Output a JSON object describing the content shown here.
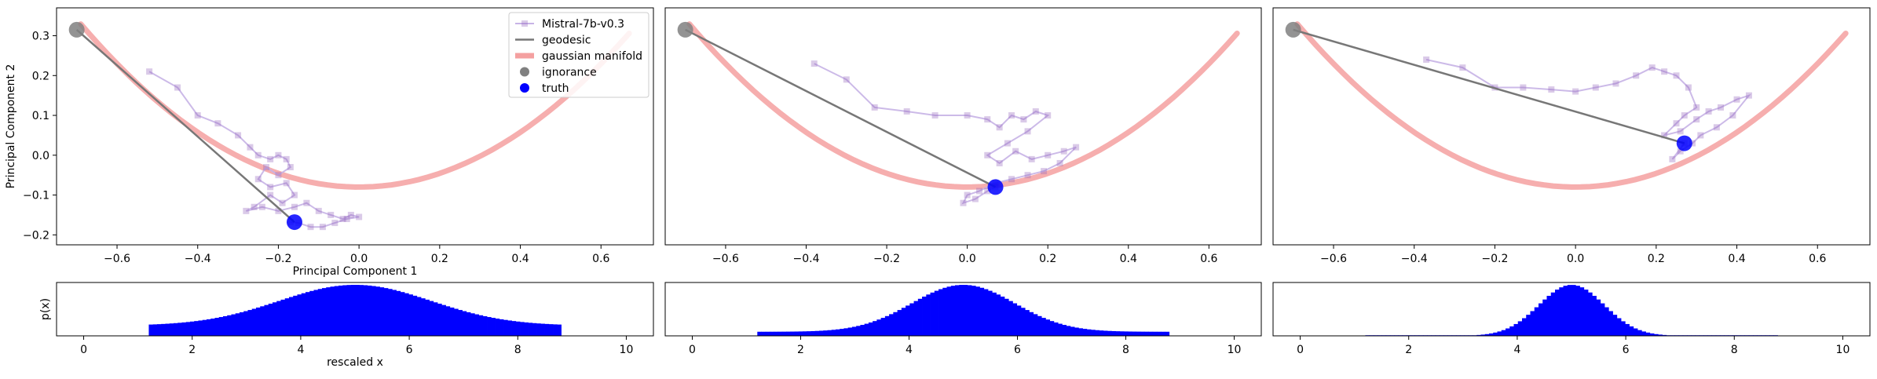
{
  "legend": {
    "series": "Mistral-7b-v0.3",
    "geodesic": "geodesic",
    "manifold": "gaussian manifold",
    "ignorance": "ignorance",
    "truth": "truth"
  },
  "colors": {
    "trajectory": "#9467bd",
    "trajectory_line": "#c7b3e6",
    "geodesic": "#777777",
    "manifold": "#f4a0a0",
    "ignorance": "#808080",
    "truth": "#0000ff",
    "histogram": "#0000ff"
  },
  "chart_data": [
    {
      "type": "line",
      "panel": 1,
      "xlabel": "Principal Component 1",
      "ylabel": "Principal Component 2",
      "xlim": [
        -0.75,
        0.73
      ],
      "ylim": [
        -0.225,
        0.37
      ],
      "xticks": [
        "-0.6",
        "-0.4",
        "-0.2",
        "0.0",
        "0.2",
        "0.4",
        "0.6"
      ],
      "yticks": [
        "-0.2",
        "-0.1",
        "0.0",
        "0.1",
        "0.2",
        "0.3"
      ],
      "legend_position": "top-right",
      "ignorance": [
        -0.7,
        0.315
      ],
      "truth": [
        -0.16,
        -0.168
      ],
      "trajectory": {
        "x": [
          -0.52,
          -0.45,
          -0.4,
          -0.35,
          -0.3,
          -0.27,
          -0.25,
          -0.22,
          -0.2,
          -0.18,
          -0.17,
          -0.2,
          -0.23,
          -0.25,
          -0.22,
          -0.18,
          -0.16,
          -0.19,
          -0.22,
          -0.26,
          -0.28,
          -0.24,
          -0.2,
          -0.16,
          -0.13,
          -0.1,
          -0.07,
          -0.04,
          -0.02,
          0.0,
          -0.03,
          -0.06,
          -0.09,
          -0.12,
          -0.15,
          -0.17
        ],
        "y": [
          0.21,
          0.17,
          0.1,
          0.08,
          0.05,
          0.02,
          0.0,
          -0.01,
          0.0,
          -0.01,
          -0.03,
          -0.05,
          -0.03,
          -0.06,
          -0.08,
          -0.07,
          -0.1,
          -0.12,
          -0.1,
          -0.13,
          -0.14,
          -0.13,
          -0.14,
          -0.13,
          -0.12,
          -0.14,
          -0.15,
          -0.16,
          -0.15,
          -0.155,
          -0.16,
          -0.17,
          -0.18,
          -0.18,
          -0.17,
          -0.168
        ]
      }
    },
    {
      "type": "line",
      "panel": 2,
      "xlim": [
        -0.75,
        0.73
      ],
      "ylim": [
        -0.225,
        0.37
      ],
      "xticks": [
        "-0.6",
        "-0.4",
        "-0.2",
        "0.0",
        "0.2",
        "0.4",
        "0.6"
      ],
      "ignorance": [
        -0.7,
        0.315
      ],
      "truth": [
        0.07,
        -0.08
      ],
      "trajectory": {
        "x": [
          -0.38,
          -0.3,
          -0.23,
          -0.15,
          -0.08,
          0.0,
          0.05,
          0.08,
          0.11,
          0.14,
          0.17,
          0.2,
          0.15,
          0.1,
          0.05,
          0.08,
          0.12,
          0.16,
          0.2,
          0.24,
          0.27,
          0.23,
          0.19,
          0.15,
          0.11,
          0.07,
          0.03,
          0.0,
          -0.01,
          0.02,
          0.05,
          0.07
        ],
        "y": [
          0.23,
          0.19,
          0.12,
          0.11,
          0.1,
          0.1,
          0.09,
          0.07,
          0.1,
          0.09,
          0.11,
          0.1,
          0.06,
          0.03,
          0.0,
          -0.02,
          0.01,
          -0.01,
          0.0,
          0.01,
          0.02,
          -0.02,
          -0.04,
          -0.05,
          -0.06,
          -0.07,
          -0.09,
          -0.1,
          -0.12,
          -0.11,
          -0.09,
          -0.08
        ]
      }
    },
    {
      "type": "line",
      "panel": 3,
      "xlim": [
        -0.75,
        0.73
      ],
      "ylim": [
        -0.225,
        0.37
      ],
      "xticks": [
        "-0.6",
        "-0.4",
        "-0.2",
        "0.0",
        "0.2",
        "0.4",
        "0.6"
      ],
      "ignorance": [
        -0.7,
        0.315
      ],
      "truth": [
        0.27,
        0.03
      ],
      "trajectory": {
        "x": [
          -0.37,
          -0.28,
          -0.2,
          -0.13,
          -0.06,
          0.0,
          0.05,
          0.1,
          0.15,
          0.19,
          0.22,
          0.25,
          0.28,
          0.3,
          0.27,
          0.25,
          0.22,
          0.26,
          0.3,
          0.33,
          0.36,
          0.4,
          0.43,
          0.39,
          0.35,
          0.31,
          0.29,
          0.26,
          0.24,
          0.27
        ],
        "y": [
          0.24,
          0.22,
          0.17,
          0.17,
          0.165,
          0.16,
          0.17,
          0.18,
          0.2,
          0.22,
          0.21,
          0.2,
          0.17,
          0.12,
          0.1,
          0.08,
          0.05,
          0.06,
          0.09,
          0.11,
          0.12,
          0.14,
          0.15,
          0.1,
          0.07,
          0.05,
          0.03,
          0.01,
          -0.01,
          0.03
        ]
      }
    },
    {
      "type": "bar",
      "panel": 4,
      "xlabel": "rescaled x",
      "ylabel": "p(x)",
      "xlim": [
        -0.5,
        10.5
      ],
      "xticks": [
        "0",
        "2",
        "4",
        "6",
        "8",
        "10"
      ],
      "range": [
        1.2,
        8.8
      ],
      "center": 5,
      "sigma": 1.4,
      "floor": 0.2
    },
    {
      "type": "bar",
      "panel": 5,
      "xlim": [
        -0.5,
        10.5
      ],
      "xticks": [
        "0",
        "2",
        "4",
        "6",
        "8",
        "10"
      ],
      "range": [
        1.2,
        8.8
      ],
      "center": 5,
      "sigma": 0.95,
      "floor": 0.08
    },
    {
      "type": "bar",
      "panel": 6,
      "xlim": [
        -0.5,
        10.5
      ],
      "xticks": [
        "0",
        "2",
        "4",
        "6",
        "8",
        "10"
      ],
      "range": [
        1.2,
        8.8
      ],
      "center": 5,
      "sigma": 0.6,
      "floor": 0.0
    }
  ]
}
